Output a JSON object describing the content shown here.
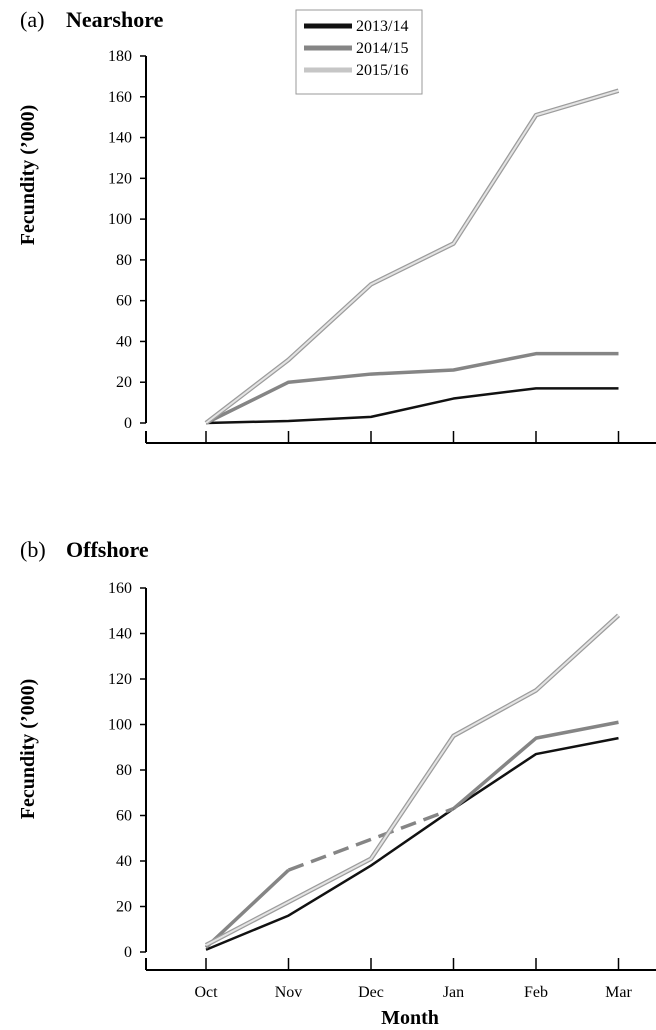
{
  "figure": {
    "xlabel": "Month"
  },
  "legend": {
    "entries": [
      {
        "name": "2013/14",
        "color": "#111111"
      },
      {
        "name": "2014/15",
        "color": "#858585"
      },
      {
        "name": "2015/16",
        "color": "#c6c6c6"
      }
    ]
  },
  "chart_data": [
    {
      "type": "line",
      "panel_label": "(a)",
      "title": "Nearshore",
      "ylabel": "Fecundity (’000)",
      "ylim": [
        0,
        180
      ],
      "yticks": [
        0,
        20,
        40,
        60,
        80,
        100,
        120,
        140,
        160,
        180
      ],
      "categories": [
        "Oct",
        "Nov",
        "Dec",
        "Jan",
        "Feb",
        "Mar"
      ],
      "show_xtick_labels": false,
      "grid": false,
      "series": [
        {
          "name": "2013/14",
          "color": "#111111",
          "values": [
            0,
            1,
            3,
            12,
            17,
            17
          ]
        },
        {
          "name": "2014/15",
          "color": "#858585",
          "values": [
            0,
            20,
            24,
            26,
            34,
            34
          ]
        },
        {
          "name": "2015/16",
          "color": "#c6c6c6",
          "values": [
            0,
            31,
            68,
            88,
            151,
            163
          ]
        }
      ]
    },
    {
      "type": "line",
      "panel_label": "(b)",
      "title": "Offshore",
      "ylabel": "Fecundity (’000)",
      "ylim": [
        0,
        160
      ],
      "yticks": [
        0,
        20,
        40,
        60,
        80,
        100,
        120,
        140,
        160
      ],
      "categories": [
        "Oct",
        "Nov",
        "Dec",
        "Jan",
        "Feb",
        "Mar"
      ],
      "show_xtick_labels": true,
      "grid": false,
      "series": [
        {
          "name": "2013/14",
          "color": "#111111",
          "values": [
            1,
            16,
            38,
            63,
            87,
            94
          ]
        },
        {
          "name": "2014/15",
          "color": "#858585",
          "values": [
            2,
            36,
            null,
            63,
            94,
            101
          ],
          "dashed_gap": {
            "from_index": 1,
            "to_index": 3
          }
        },
        {
          "name": "2015/16",
          "color": "#c6c6c6",
          "values": [
            3,
            22,
            41,
            95,
            115,
            148
          ]
        }
      ]
    }
  ]
}
